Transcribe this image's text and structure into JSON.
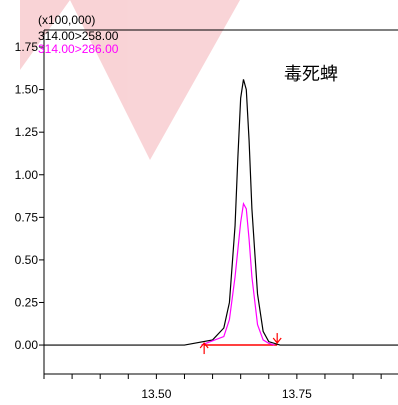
{
  "chart_data": {
    "type": "line",
    "multiplier": "(x100,000)",
    "title": "",
    "xlabel": "",
    "ylabel": "",
    "xlim": [
      13.3,
      13.93
    ],
    "ylim": [
      -0.17,
      1.85
    ],
    "x_ticks": [
      13.5,
      13.75
    ],
    "x_tick_labels": [
      "13.50",
      "13.75"
    ],
    "y_ticks": [
      0.0,
      0.25,
      0.5,
      0.75,
      1.0,
      1.25,
      1.5,
      1.75
    ],
    "y_tick_labels": [
      "0.00",
      "0.25",
      "0.50",
      "0.75",
      "1.00",
      "1.25",
      "1.50",
      "1.75"
    ],
    "legend_position": "top-left",
    "annotation": "毒死蜱",
    "series": [
      {
        "name": "314.00>258.00",
        "color": "#000000",
        "x": [
          13.3,
          13.55,
          13.6,
          13.62,
          13.63,
          13.64,
          13.645,
          13.65,
          13.655,
          13.66,
          13.665,
          13.67,
          13.68,
          13.69,
          13.7,
          13.72,
          13.93
        ],
        "y": [
          0.0,
          0.0,
          0.03,
          0.1,
          0.25,
          0.7,
          1.1,
          1.45,
          1.56,
          1.5,
          1.2,
          0.8,
          0.3,
          0.08,
          0.02,
          0.0,
          0.0
        ]
      },
      {
        "name": "314.00>286.00",
        "color": "#ff00ff",
        "x": [
          13.58,
          13.62,
          13.63,
          13.64,
          13.65,
          13.655,
          13.66,
          13.665,
          13.67,
          13.68,
          13.69,
          13.7,
          13.71
        ],
        "y": [
          0.0,
          0.05,
          0.15,
          0.4,
          0.72,
          0.83,
          0.8,
          0.62,
          0.4,
          0.12,
          0.03,
          0.01,
          0.0
        ]
      }
    ],
    "baseline": {
      "color": "#ff0000",
      "x": [
        13.585,
        13.715
      ],
      "y": [
        0.0,
        0.0
      ]
    },
    "integration_markers": {
      "color": "#ff0000",
      "x": [
        13.585,
        13.715
      ]
    }
  }
}
